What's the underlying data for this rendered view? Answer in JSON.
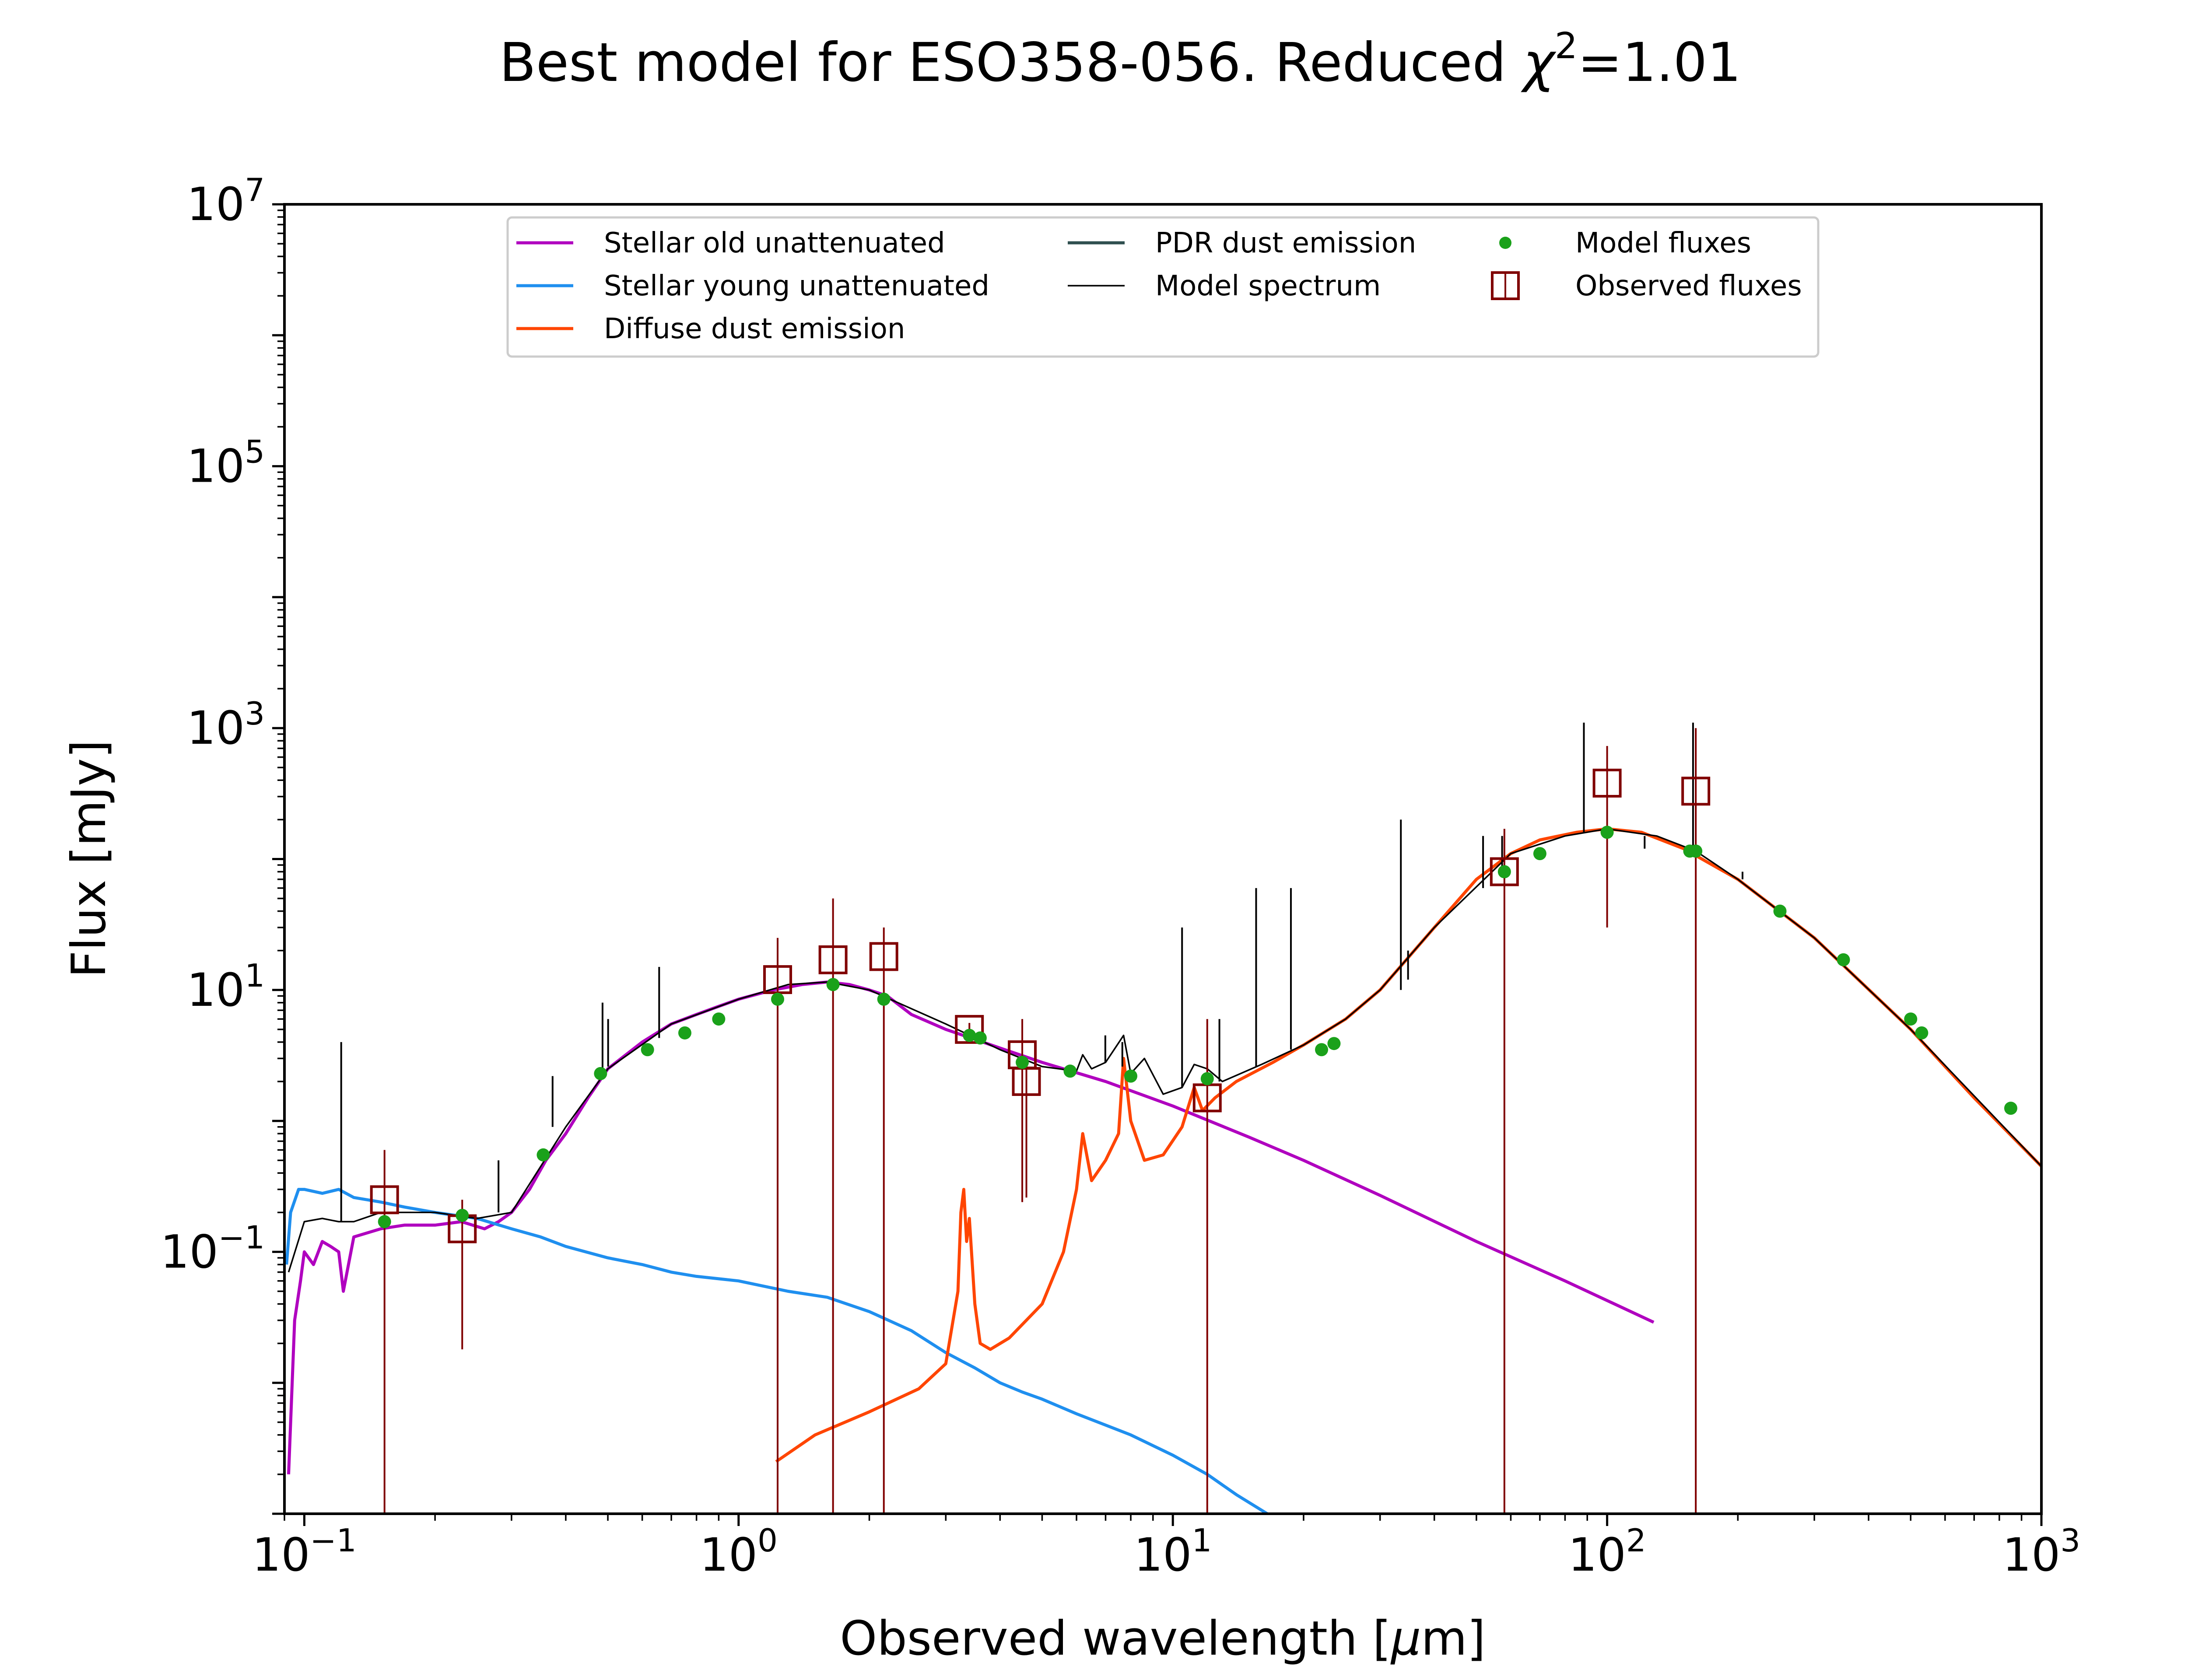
{
  "chart_data": {
    "type": "line",
    "title_prefix": "Best model for ESO358-056. Reduced ",
    "title_symbol": "χ",
    "title_superscript": "2",
    "title_suffix": "=1.01",
    "xlabel_prefix": "Observed wavelength [",
    "xlabel_mu": "μ",
    "xlabel_suffix": "m]",
    "ylabel": "Flux [mJy]",
    "xscale": "log",
    "yscale": "log",
    "xlim": [
      0.09,
      1000
    ],
    "ylim": [
      0.001,
      10000000
    ],
    "x_ticks": [
      {
        "base": "10",
        "exp": "−1",
        "value": 0.1
      },
      {
        "base": "10",
        "exp": "0",
        "value": 1
      },
      {
        "base": "10",
        "exp": "1",
        "value": 10
      },
      {
        "base": "10",
        "exp": "2",
        "value": 100
      },
      {
        "base": "10",
        "exp": "3",
        "value": 1000
      }
    ],
    "y_ticks": [
      {
        "base": "10",
        "exp": "−1",
        "value": 0.1
      },
      {
        "base": "10",
        "exp": "1",
        "value": 10
      },
      {
        "base": "10",
        "exp": "3",
        "value": 1000
      },
      {
        "base": "10",
        "exp": "5",
        "value": 100000
      },
      {
        "base": "10",
        "exp": "7",
        "value": 10000000
      }
    ],
    "legend_position": "upper-center",
    "legend": [
      {
        "label": "Stellar old unattenuated",
        "kind": "line",
        "color": "#b000bf"
      },
      {
        "label": "Stellar young unattenuated",
        "kind": "line",
        "color": "#1f8fef"
      },
      {
        "label": "Diffuse dust emission",
        "kind": "line",
        "color": "#ff4500"
      },
      {
        "label": "PDR dust emission",
        "kind": "line",
        "color": "#2f4f4f"
      },
      {
        "label": "Model spectrum",
        "kind": "thinline",
        "color": "#000000"
      },
      {
        "label": "Model fluxes",
        "kind": "dot",
        "color": "#1aa11a"
      },
      {
        "label": "Observed fluxes",
        "kind": "square",
        "color": "#800000"
      }
    ],
    "series": [
      {
        "key": "stellar_old",
        "color": "#b000bf",
        "x": [
          0.092,
          0.095,
          0.098,
          0.1,
          0.105,
          0.11,
          0.115,
          0.12,
          0.123,
          0.13,
          0.14,
          0.15,
          0.17,
          0.2,
          0.23,
          0.26,
          0.28,
          0.3,
          0.33,
          0.36,
          0.4,
          0.45,
          0.5,
          0.6,
          0.7,
          0.8,
          0.9,
          1.0,
          1.2,
          1.4,
          1.6,
          1.8,
          2.0,
          2.2,
          2.5,
          3.0,
          3.5,
          4.0,
          5.0,
          7.0,
          10,
          15,
          20,
          30,
          50,
          80,
          128
        ],
        "y": [
          0.002,
          0.03,
          0.06,
          0.1,
          0.08,
          0.12,
          0.11,
          0.1,
          0.05,
          0.13,
          0.14,
          0.15,
          0.16,
          0.16,
          0.17,
          0.15,
          0.17,
          0.2,
          0.3,
          0.5,
          0.8,
          1.5,
          2.5,
          4.0,
          5.5,
          6.5,
          7.5,
          8.5,
          10,
          11,
          11.5,
          11,
          10,
          9,
          6.5,
          5.0,
          4.2,
          3.6,
          2.8,
          2.0,
          1.3,
          0.75,
          0.5,
          0.27,
          0.12,
          0.06,
          0.029
        ]
      },
      {
        "key": "stellar_young",
        "color": "#1f8fef",
        "x": [
          0.091,
          0.093,
          0.097,
          0.1,
          0.11,
          0.12,
          0.13,
          0.15,
          0.17,
          0.2,
          0.25,
          0.3,
          0.35,
          0.4,
          0.5,
          0.6,
          0.7,
          0.8,
          1.0,
          1.3,
          1.6,
          2.0,
          2.5,
          3.0,
          3.5,
          4.0,
          4.5,
          5,
          6,
          8,
          10,
          12,
          14,
          16.5
        ],
        "y": [
          0.08,
          0.2,
          0.3,
          0.3,
          0.28,
          0.3,
          0.26,
          0.24,
          0.22,
          0.2,
          0.18,
          0.15,
          0.13,
          0.11,
          0.09,
          0.08,
          0.07,
          0.065,
          0.06,
          0.05,
          0.045,
          0.035,
          0.025,
          0.017,
          0.013,
          0.01,
          0.0085,
          0.0075,
          0.0058,
          0.004,
          0.0028,
          0.002,
          0.0014,
          0.001
        ]
      },
      {
        "key": "diffuse_dust",
        "color": "#ff4500",
        "x": [
          1.22,
          1.5,
          2.0,
          2.6,
          3.0,
          3.2,
          3.25,
          3.3,
          3.35,
          3.4,
          3.5,
          3.6,
          3.8,
          4.2,
          5.0,
          5.6,
          6.0,
          6.2,
          6.5,
          7.0,
          7.5,
          7.7,
          8.0,
          8.6,
          9.5,
          10.5,
          11.2,
          11.7,
          12.5,
          14,
          17,
          20,
          25,
          30,
          35,
          40,
          50,
          60,
          70,
          85,
          100,
          120,
          150,
          200,
          300,
          500,
          700,
          1000
        ],
        "y": [
          0.0025,
          0.004,
          0.006,
          0.009,
          0.014,
          0.05,
          0.2,
          0.3,
          0.12,
          0.18,
          0.04,
          0.02,
          0.018,
          0.022,
          0.04,
          0.1,
          0.3,
          0.8,
          0.35,
          0.5,
          0.8,
          3.0,
          1.0,
          0.5,
          0.55,
          0.9,
          1.8,
          1.2,
          1.5,
          2.0,
          2.8,
          3.8,
          6,
          10,
          18,
          30,
          70,
          110,
          140,
          160,
          170,
          160,
          120,
          70,
          25,
          5,
          1.5,
          0.45
        ]
      },
      {
        "key": "model_spectrum",
        "color": "#000000",
        "x": [
          0.092,
          0.1,
          0.11,
          0.12,
          0.13,
          0.15,
          0.2,
          0.25,
          0.3,
          0.4,
          0.5,
          0.7,
          1.0,
          1.3,
          1.6,
          2.0,
          3.0,
          4.0,
          5.0,
          6.0,
          6.2,
          6.5,
          7.0,
          7.7,
          8.0,
          8.6,
          9.5,
          10.5,
          11.2,
          12,
          13,
          16,
          20,
          25,
          30,
          40,
          60,
          80,
          100,
          130,
          160,
          200,
          300,
          500,
          1000
        ],
        "y": [
          0.07,
          0.17,
          0.18,
          0.17,
          0.17,
          0.2,
          0.2,
          0.18,
          0.2,
          0.9,
          2.5,
          5.5,
          8.5,
          11,
          11.5,
          10,
          5.5,
          3.5,
          2.6,
          2.4,
          3.2,
          2.5,
          2.8,
          4.5,
          2.3,
          3.0,
          1.6,
          1.8,
          2.7,
          2.5,
          2.0,
          2.7,
          3.8,
          6,
          10,
          30,
          110,
          150,
          170,
          150,
          115,
          70,
          25,
          5,
          0.45
        ]
      }
    ],
    "emission_lines": {
      "color": "#000000",
      "x": [
        0.1216,
        0.28,
        0.373,
        0.4861,
        0.5007,
        0.6563,
        6.99,
        7.65,
        10.5,
        12.8,
        15.55,
        18.7,
        33.5,
        34.8,
        51.8,
        57.3,
        88.4,
        122,
        145,
        157.7,
        205
      ],
      "base": [
        0.17,
        0.2,
        0.9,
        2.4,
        2.6,
        4.3,
        2.8,
        2.6,
        1.8,
        2.0,
        2.6,
        3.5,
        10,
        12,
        60,
        80,
        160,
        150,
        125,
        115,
        70
      ],
      "peak": [
        4.0,
        0.5,
        2.2,
        8.0,
        6.0,
        15.0,
        4.5,
        4.0,
        30,
        6.0,
        60,
        60,
        200,
        20,
        150,
        150,
        1100,
        120,
        125,
        1100,
        80
      ]
    },
    "model_fluxes": {
      "color": "#1aa11a",
      "x": [
        0.153,
        0.231,
        0.355,
        0.481,
        0.617,
        0.752,
        0.9,
        1.23,
        1.65,
        2.16,
        3.4,
        3.6,
        4.5,
        5.8,
        8.0,
        12,
        22,
        23.5,
        58,
        70,
        100,
        155,
        160,
        250,
        350,
        500,
        530,
        850
      ],
      "y": [
        0.17,
        0.19,
        0.55,
        2.3,
        3.5,
        4.7,
        6.0,
        8.5,
        11,
        8.5,
        4.5,
        4.3,
        2.8,
        2.4,
        2.2,
        2.1,
        3.5,
        3.9,
        80,
        110,
        160,
        115,
        115,
        40,
        17,
        6.0,
        4.7,
        1.25
      ]
    },
    "observed_fluxes": {
      "color": "#800000",
      "x": [
        0.153,
        0.231,
        1.23,
        1.65,
        2.16,
        3.4,
        4.5,
        4.6,
        12,
        58,
        100,
        160
      ],
      "y": [
        0.25,
        0.15,
        12,
        17,
        18,
        5.0,
        3.2,
        2.0,
        1.5,
        80,
        380,
        330
      ],
      "err_low": [
        0.001,
        0.018,
        0.001,
        0.001,
        0.001,
        4.4,
        0.24,
        0.26,
        0.001,
        0.001,
        30,
        0.001
      ],
      "err_high": [
        0.6,
        0.25,
        25,
        50,
        30,
        5.6,
        6.0,
        2.9,
        6.0,
        170,
        730,
        1000
      ]
    }
  }
}
